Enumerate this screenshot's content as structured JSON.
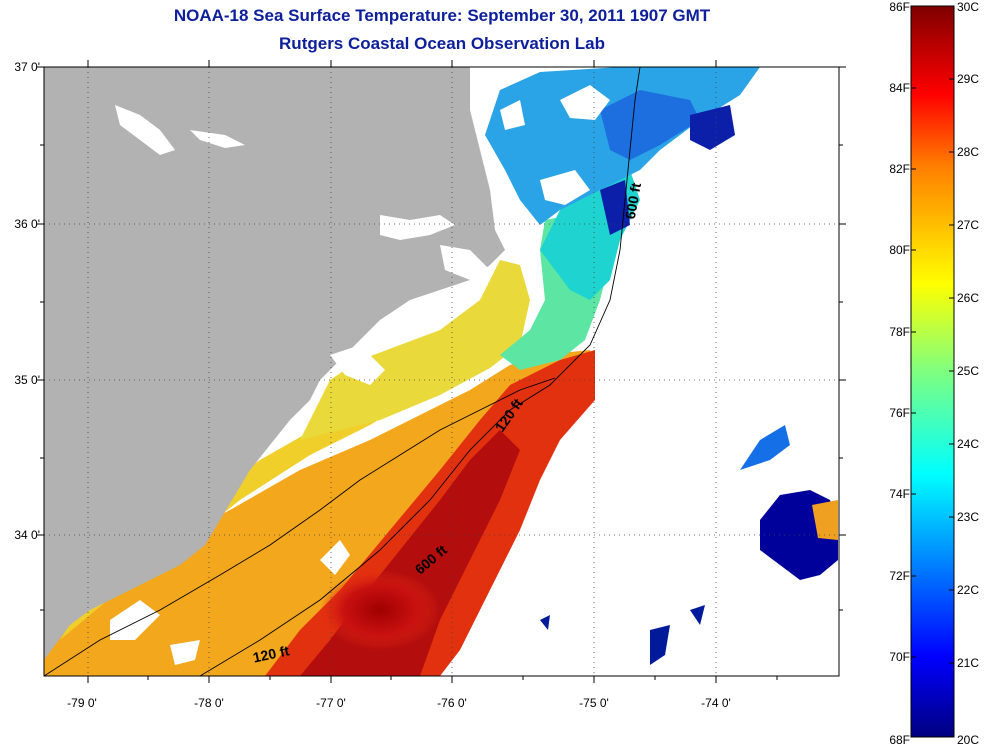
{
  "title": {
    "line1": "NOAA-18 Sea Surface Temperature:  September 30, 2011 1907 GMT",
    "line2": "Rutgers Coastal Ocean Observation Lab"
  },
  "map": {
    "lat_labels": [
      "37 0'",
      "36 0'",
      "35 0'",
      "34 0'"
    ],
    "lon_labels": [
      "-79 0'",
      "-78 0'",
      "-77 0'",
      "-76 0'",
      "-75 0'",
      "-74 0'"
    ],
    "isobath_labels": [
      "120 ft",
      "600 ft",
      "120 ft",
      "600 ft"
    ],
    "colors": {
      "land": "#b2b2b2",
      "no_data": "#ffffff"
    }
  },
  "colorbar": {
    "fahrenheit_labels": [
      "86F",
      "84F",
      "82F",
      "80F",
      "78F",
      "76F",
      "74F",
      "72F",
      "70F",
      "68F"
    ],
    "celsius_labels": [
      "30C",
      "29C",
      "28C",
      "27C",
      "26C",
      "25C",
      "24C",
      "23C",
      "22C",
      "21C",
      "20C"
    ],
    "stops": [
      "#00007f",
      "#0000ff",
      "#007fff",
      "#00ffff",
      "#7fff7f",
      "#ffff00",
      "#ff7f00",
      "#ff0000",
      "#7f0000"
    ]
  }
}
